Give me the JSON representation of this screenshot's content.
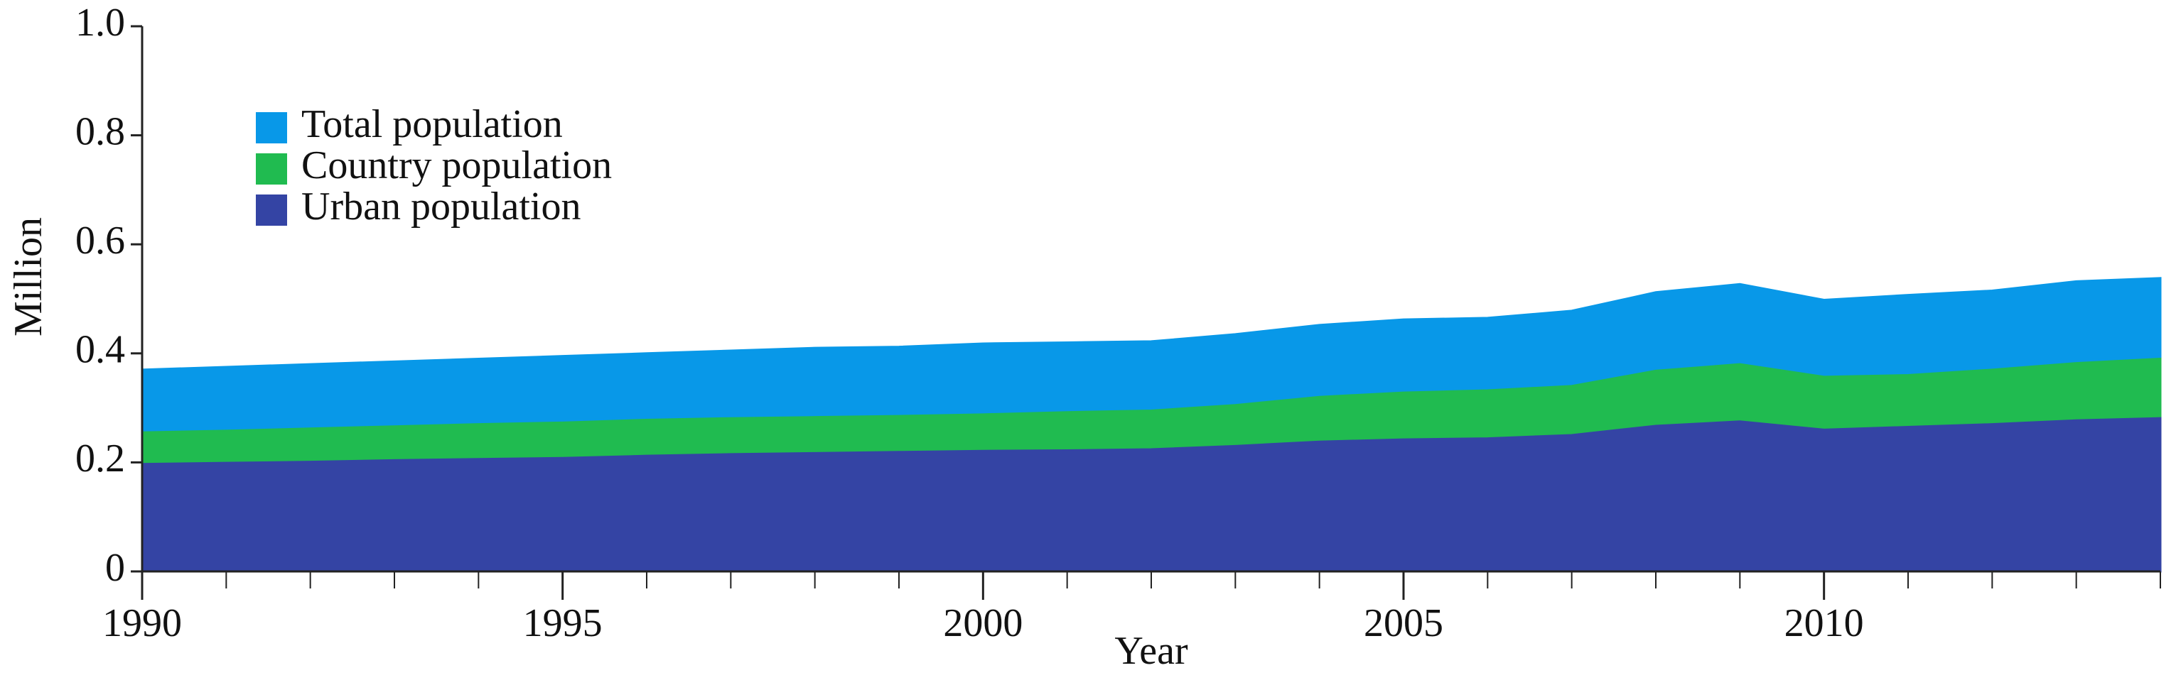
{
  "chart_data": {
    "type": "area",
    "x_label": "Year",
    "y_label": "Million",
    "x": [
      1990,
      1991,
      1992,
      1993,
      1994,
      1995,
      1996,
      1997,
      1998,
      1999,
      2000,
      2001,
      2002,
      2003,
      2004,
      2005,
      2006,
      2007,
      2008,
      2009,
      2010,
      2011,
      2012,
      2013,
      2014
    ],
    "xlim": [
      1990,
      2014
    ],
    "xticks": [
      1990,
      1995,
      2000,
      2005,
      2010
    ],
    "ylim": [
      0,
      1
    ],
    "yticks": [
      0,
      0.2,
      0.4,
      0.6,
      0.8,
      {
        "value": 1,
        "label": "1.0"
      }
    ],
    "legend": "upper left",
    "series": [
      {
        "name": "Total population",
        "color": "#0898e8",
        "values": [
          0.37,
          0.375,
          0.38,
          0.385,
          0.39,
          0.395,
          0.4,
          0.405,
          0.41,
          0.412,
          0.418,
          0.42,
          0.422,
          0.435,
          0.452,
          0.462,
          0.465,
          0.478,
          0.512,
          0.527,
          0.498,
          0.507,
          0.515,
          0.532,
          0.538
        ]
      },
      {
        "name": "Country population",
        "color": "#20bb50",
        "values": [
          0.255,
          0.258,
          0.262,
          0.266,
          0.27,
          0.273,
          0.278,
          0.281,
          0.283,
          0.285,
          0.288,
          0.292,
          0.295,
          0.305,
          0.32,
          0.328,
          0.332,
          0.34,
          0.368,
          0.38,
          0.357,
          0.36,
          0.37,
          0.382,
          0.39
        ]
      },
      {
        "name": "Urban population",
        "color": "#3444a4",
        "values": [
          0.197,
          0.199,
          0.201,
          0.204,
          0.206,
          0.208,
          0.212,
          0.215,
          0.217,
          0.219,
          0.221,
          0.222,
          0.224,
          0.23,
          0.238,
          0.242,
          0.244,
          0.25,
          0.267,
          0.275,
          0.26,
          0.265,
          0.27,
          0.277,
          0.281
        ]
      }
    ]
  }
}
